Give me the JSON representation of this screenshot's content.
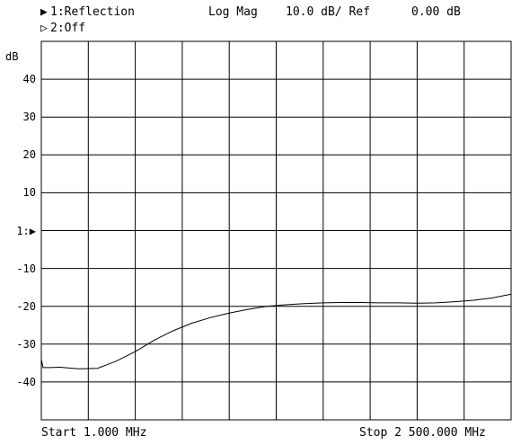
{
  "header": {
    "channel1_marker": "▶",
    "channel1_label": "1:Reflection",
    "channel2_marker": "▷",
    "channel2_label": "2:Off",
    "format": "Log Mag",
    "scale": "10.0 dB/ Ref",
    "ref_value": "0.00 dB"
  },
  "footer": {
    "start": "Start 1.000 MHz",
    "stop": "Stop 2 500.000 MHz"
  },
  "chart_data": {
    "type": "line",
    "ylabel": "dB",
    "ylim": [
      -50,
      50
    ],
    "xlim": [
      1,
      2500
    ],
    "x_unit": "MHz",
    "grid": true,
    "grid_divisions_x": 10,
    "grid_divisions_y": 10,
    "y_ticks": [
      {
        "value": 40,
        "label": "40"
      },
      {
        "value": 30,
        "label": "30"
      },
      {
        "value": 20,
        "label": "20"
      },
      {
        "value": 10,
        "label": "10"
      },
      {
        "value": 0,
        "label": "1:▶"
      },
      {
        "value": -10,
        "label": "-10"
      },
      {
        "value": -20,
        "label": "-20"
      },
      {
        "value": -30,
        "label": "-30"
      },
      {
        "value": -40,
        "label": "-40"
      }
    ],
    "series": [
      {
        "color": "#000000",
        "x": [
          1,
          10,
          50,
          100,
          200,
          300,
          400,
          500,
          600,
          700,
          800,
          900,
          1000,
          1100,
          1200,
          1300,
          1400,
          1500,
          1600,
          1700,
          1800,
          1900,
          2000,
          2100,
          2200,
          2300,
          2400,
          2500
        ],
        "values": [
          -34,
          -36.2,
          -36.2,
          -36.1,
          -36.5,
          -36.4,
          -34.5,
          -32.0,
          -29.0,
          -26.5,
          -24.5,
          -23.0,
          -21.8,
          -20.8,
          -20.0,
          -19.6,
          -19.3,
          -19.1,
          -19.0,
          -19.0,
          -19.1,
          -19.1,
          -19.2,
          -19.1,
          -18.8,
          -18.4,
          -17.8,
          -16.8
        ]
      }
    ]
  }
}
